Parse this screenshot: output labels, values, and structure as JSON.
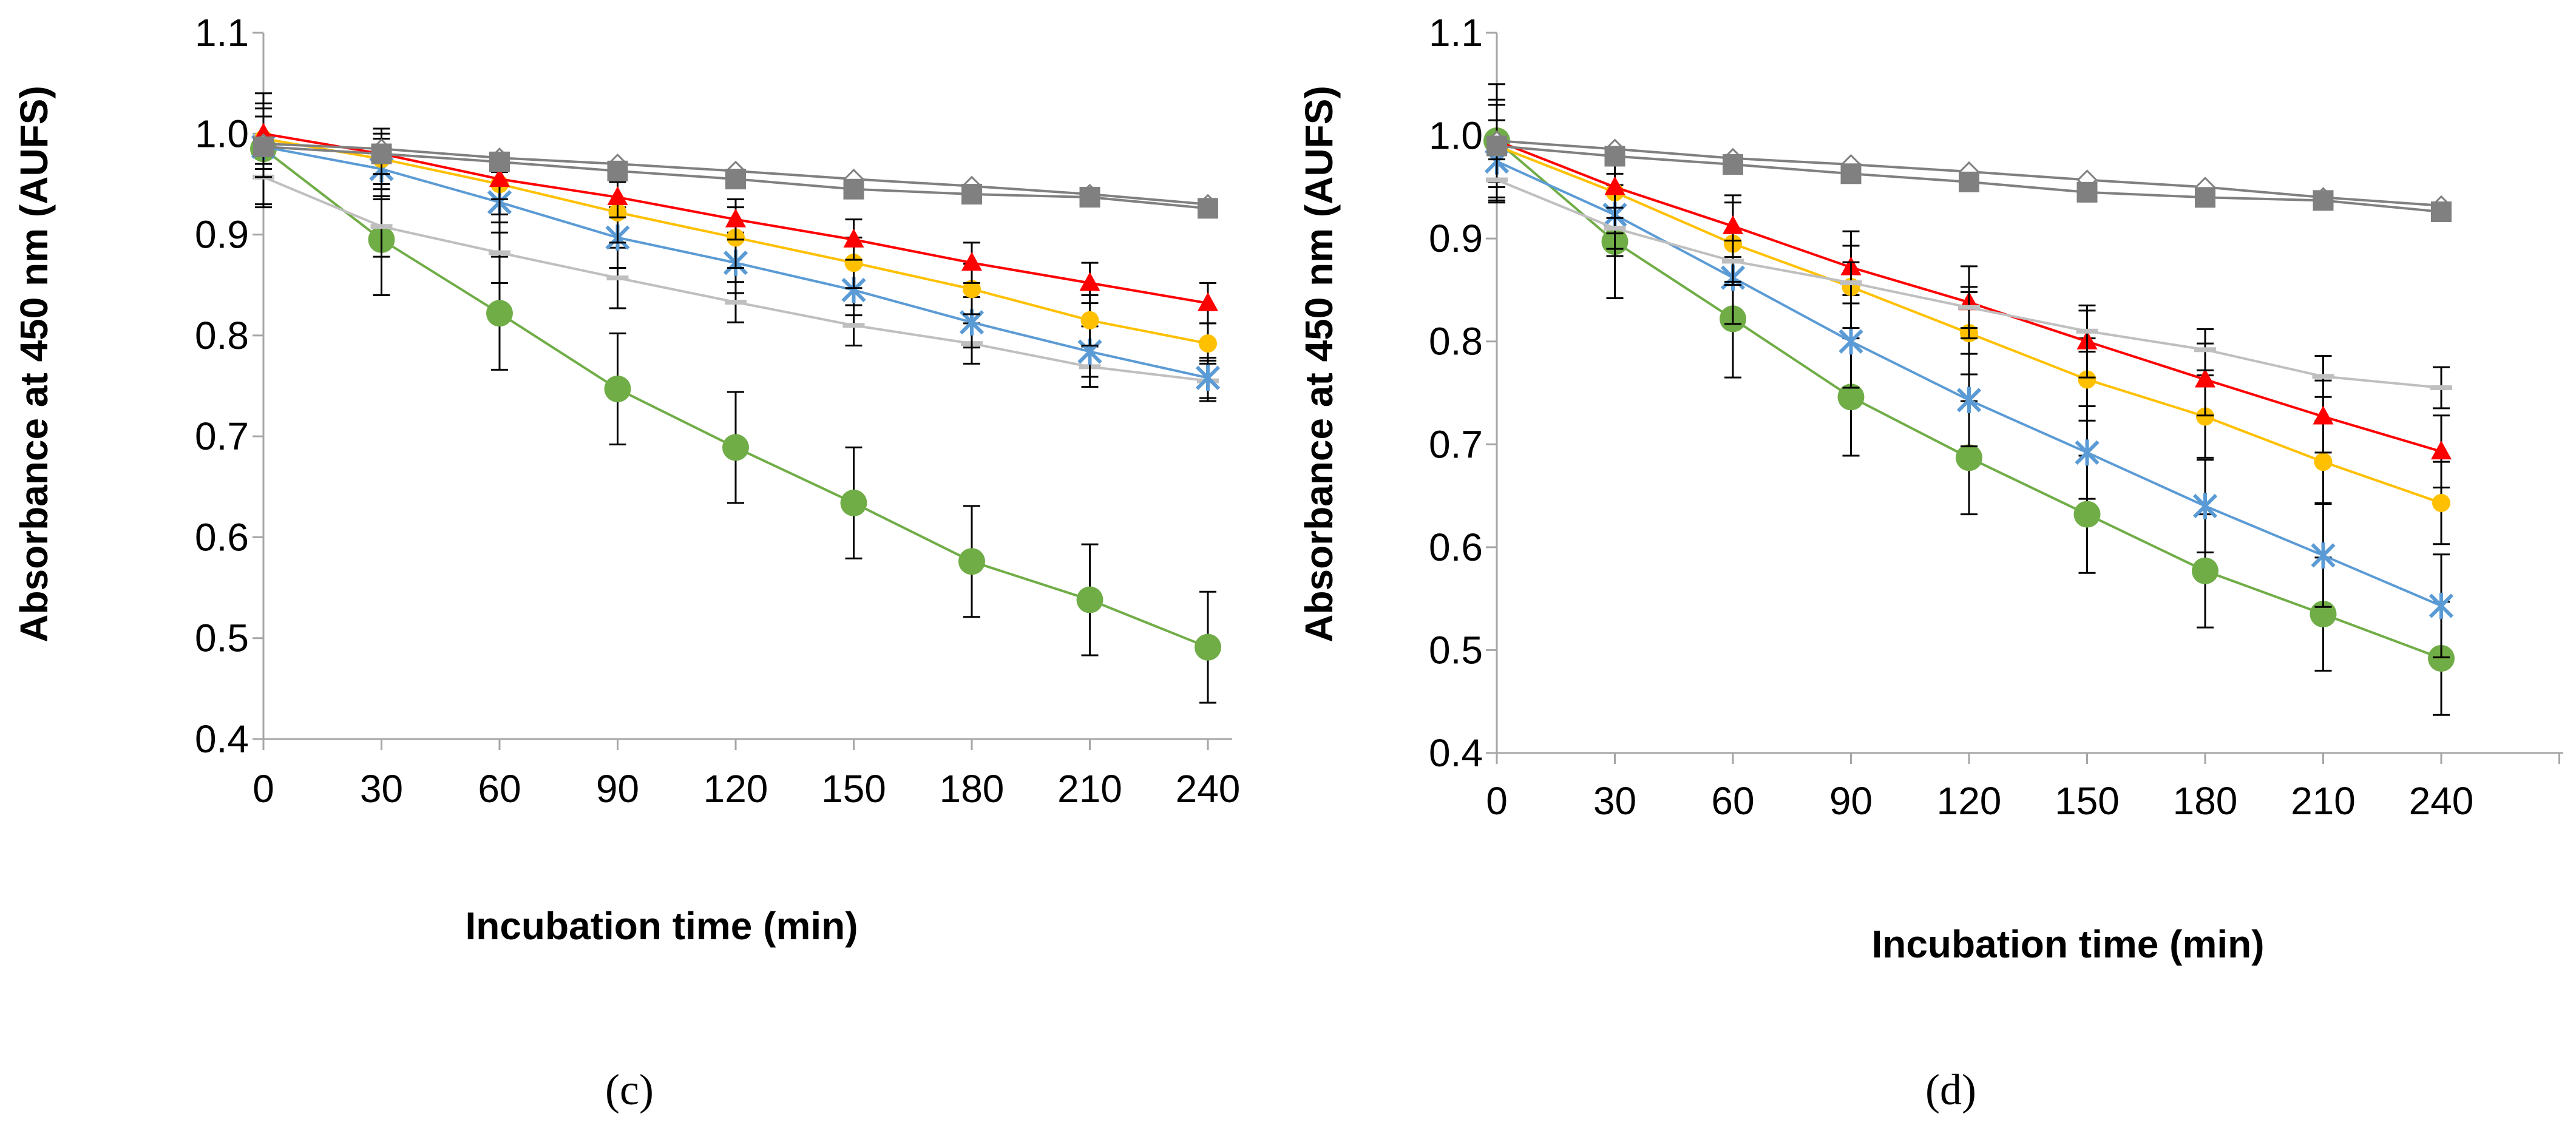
{
  "colors": {
    "green": "#70AD47",
    "blue": "#5B9BD5",
    "yellow": "#FFC000",
    "red": "#FF0000",
    "grayLight": "#BFBFBF",
    "grayDark": "#808080",
    "axis": "#A6A6A6",
    "errorbar": "#000000"
  },
  "chart_data": [
    {
      "type": "line",
      "panel": "c",
      "caption": "(c)",
      "xlabel": "Incubation time (min)",
      "ylabel": "Absorbance at 450 nm (AUFS)",
      "categories": [
        "0",
        "30",
        "60",
        "90",
        "120",
        "150",
        "180",
        "210",
        "240"
      ],
      "x": [
        0,
        30,
        60,
        90,
        120,
        150,
        180,
        210,
        240
      ],
      "ylim": [
        0.4,
        1.1
      ],
      "yticks": [
        "0.4",
        "0.5",
        "0.6",
        "0.7",
        "0.8",
        "0.9",
        "1.0",
        "1.1"
      ],
      "series": [
        {
          "name": "green",
          "color": "#70AD47",
          "marker": "circle",
          "values": [
            0.985,
            0.895,
            0.822,
            0.747,
            0.689,
            0.634,
            0.576,
            0.538,
            0.491
          ],
          "err": [
            0.055,
            0.055,
            0.056,
            0.055,
            0.055,
            0.055,
            0.055,
            0.055,
            0.055
          ]
        },
        {
          "name": "gray-light",
          "color": "#BFBFBF",
          "marker": "dash",
          "values": [
            0.957,
            0.908,
            0.882,
            0.857,
            0.833,
            0.81,
            0.792,
            0.769,
            0.755
          ],
          "err": [
            0.03,
            0.03,
            0.03,
            0.03,
            0.02,
            0.02,
            0.02,
            0.02,
            0.02
          ]
        },
        {
          "name": "blue",
          "color": "#5B9BD5",
          "marker": "star",
          "values": [
            0.987,
            0.965,
            0.932,
            0.897,
            0.872,
            0.845,
            0.813,
            0.784,
            0.758
          ],
          "err": [
            0.03,
            0.03,
            0.03,
            0.03,
            0.03,
            0.025,
            0.025,
            0.025,
            0.02
          ]
        },
        {
          "name": "yellow",
          "color": "#FFC000",
          "marker": "circle-small",
          "values": [
            0.995,
            0.975,
            0.95,
            0.922,
            0.897,
            0.872,
            0.846,
            0.815,
            0.792
          ],
          "err": [
            0.03,
            0.03,
            0.03,
            0.03,
            0.03,
            0.025,
            0.025,
            0.025,
            0.02
          ]
        },
        {
          "name": "red",
          "color": "#FF0000",
          "marker": "triangle",
          "values": [
            1.0,
            0.98,
            0.955,
            0.937,
            0.915,
            0.895,
            0.872,
            0.852,
            0.832
          ],
          "err": [
            0.03,
            0.02,
            0.02,
            0.02,
            0.02,
            0.02,
            0.02,
            0.02,
            0.02
          ]
        },
        {
          "name": "gray-dark-1",
          "color": "#808080",
          "marker": "diamond",
          "values": [
            0.99,
            0.985,
            0.976,
            0.97,
            0.963,
            0.955,
            0.948,
            0.94,
            0.93
          ],
          "err": [
            0.0,
            0.0,
            0.0,
            0.0,
            0.0,
            0.0,
            0.0,
            0.0,
            0.0
          ]
        },
        {
          "name": "gray-dark-2",
          "color": "#808080",
          "marker": "square",
          "values": [
            0.987,
            0.98,
            0.972,
            0.963,
            0.955,
            0.945,
            0.94,
            0.937,
            0.926
          ],
          "err": [
            0.0,
            0.0,
            0.0,
            0.0,
            0.0,
            0.0,
            0.0,
            0.0,
            0.0
          ]
        }
      ]
    },
    {
      "type": "line",
      "panel": "d",
      "caption": "(d)",
      "xlabel": "Incubation time (min)",
      "ylabel": "Absorbance at 450 nm (AUFS)",
      "categories": [
        "0",
        "30",
        "60",
        "90",
        "120",
        "150",
        "180",
        "210",
        "240"
      ],
      "x": [
        0,
        30,
        60,
        90,
        120,
        150,
        180,
        210,
        240
      ],
      "ylim": [
        0.4,
        1.1
      ],
      "yticks": [
        "0.4",
        "0.5",
        "0.6",
        "0.7",
        "0.8",
        "0.9",
        "1.0",
        "1.1"
      ],
      "series": [
        {
          "name": "green",
          "color": "#70AD47",
          "marker": "circle",
          "values": [
            0.995,
            0.897,
            0.822,
            0.746,
            0.687,
            0.632,
            0.577,
            0.535,
            0.492
          ],
          "err": [
            0.055,
            0.055,
            0.057,
            0.057,
            0.055,
            0.057,
            0.055,
            0.055,
            0.055
          ]
        },
        {
          "name": "blue",
          "color": "#5B9BD5",
          "marker": "star",
          "values": [
            0.975,
            0.923,
            0.862,
            0.8,
            0.743,
            0.692,
            0.64,
            0.592,
            0.543
          ],
          "err": [
            0.04,
            0.04,
            0.045,
            0.045,
            0.045,
            0.045,
            0.045,
            0.05,
            0.05
          ]
        },
        {
          "name": "yellow",
          "color": "#FFC000",
          "marker": "circle-small",
          "values": [
            0.99,
            0.945,
            0.895,
            0.853,
            0.808,
            0.763,
            0.727,
            0.683,
            0.643
          ],
          "err": [
            0.04,
            0.04,
            0.04,
            0.04,
            0.04,
            0.04,
            0.04,
            0.04,
            0.04
          ]
        },
        {
          "name": "red",
          "color": "#FF0000",
          "marker": "triangle",
          "values": [
            0.995,
            0.95,
            0.912,
            0.872,
            0.838,
            0.8,
            0.763,
            0.727,
            0.693
          ],
          "err": [
            0.04,
            0.03,
            0.03,
            0.035,
            0.035,
            0.035,
            0.035,
            0.035,
            0.035
          ]
        },
        {
          "name": "gray-light",
          "color": "#BFBFBF",
          "marker": "dash",
          "values": [
            0.957,
            0.91,
            0.878,
            0.857,
            0.833,
            0.81,
            0.792,
            0.766,
            0.755
          ],
          "err": [
            0.02,
            0.02,
            0.02,
            0.02,
            0.02,
            0.02,
            0.02,
            0.02,
            0.02
          ]
        },
        {
          "name": "gray-dark-1",
          "color": "#808080",
          "marker": "diamond",
          "values": [
            0.995,
            0.987,
            0.978,
            0.972,
            0.965,
            0.957,
            0.95,
            0.94,
            0.932
          ],
          "err": [
            0.0,
            0.0,
            0.0,
            0.0,
            0.0,
            0.0,
            0.0,
            0.0,
            0.0
          ]
        },
        {
          "name": "gray-dark-2",
          "color": "#808080",
          "marker": "square",
          "values": [
            0.99,
            0.98,
            0.972,
            0.963,
            0.955,
            0.945,
            0.94,
            0.937,
            0.926
          ],
          "err": [
            0.0,
            0.0,
            0.0,
            0.0,
            0.0,
            0.0,
            0.0,
            0.0,
            0.0
          ]
        }
      ]
    }
  ]
}
